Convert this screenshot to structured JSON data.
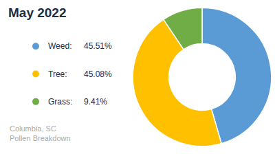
{
  "chart_data": {
    "type": "pie",
    "title": "May 2022",
    "subtitle": "Columbia, SC\nPollen Breakdown",
    "categories": [
      "Weed:",
      "Tree:",
      "Grass:"
    ],
    "values": [
      45.51,
      45.08,
      9.41
    ],
    "value_labels": [
      "45.51%",
      "45.08%",
      "9.41%"
    ],
    "colors": [
      "#5B9BD5",
      "#FFC000",
      "#70AD47"
    ],
    "legend": "left"
  }
}
